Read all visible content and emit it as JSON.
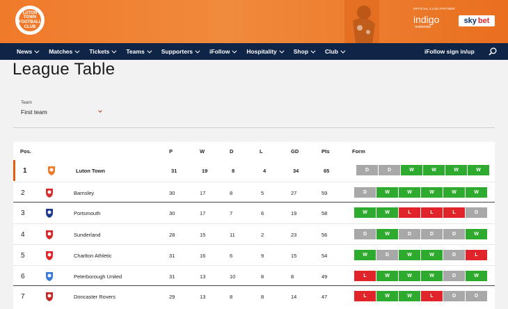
{
  "brand": {
    "crest_text": "LUTON TOWN FOOTBALL CLUB",
    "partner_label": "OFFICIAL CLUB PARTNER",
    "partner_indigo": "indigo",
    "partner_indigo_sub": "residential",
    "sponsor_sky": "sky",
    "sponsor_bet": "bet"
  },
  "nav": {
    "items": [
      {
        "label": "News"
      },
      {
        "label": "Matches"
      },
      {
        "label": "Tickets"
      },
      {
        "label": "Teams"
      },
      {
        "label": "Supporters"
      },
      {
        "label": "iFollow"
      },
      {
        "label": "Hospitality"
      },
      {
        "label": "Shop"
      },
      {
        "label": "Club"
      }
    ],
    "signin_label": "iFollow sign in/up",
    "search_icon": "search-icon"
  },
  "page": {
    "title": "League Table",
    "team_label": "Team",
    "team_value": "First team"
  },
  "table": {
    "headers": {
      "pos": "Pos.",
      "p": "P",
      "w": "W",
      "d": "D",
      "l": "L",
      "gd": "GD",
      "pts": "Pts",
      "form": "Form"
    },
    "rows": [
      {
        "pos": "1",
        "team": "Luton Town",
        "p": "31",
        "w": "19",
        "d": "8",
        "l": "4",
        "gd": "34",
        "pts": "65",
        "form": [
          "D",
          "D",
          "W",
          "W",
          "W",
          "W"
        ],
        "highlight": true,
        "bold": true,
        "badge_color": "#f07a2a"
      },
      {
        "pos": "2",
        "team": "Barnsley",
        "p": "30",
        "w": "17",
        "d": "8",
        "l": "5",
        "gd": "27",
        "pts": "59",
        "form": [
          "D",
          "W",
          "W",
          "W",
          "W",
          "W"
        ],
        "badge_color": "#d32f2f"
      },
      {
        "pos": "3",
        "team": "Portsmouth",
        "p": "30",
        "w": "17",
        "d": "7",
        "l": "6",
        "gd": "19",
        "pts": "58",
        "form": [
          "W",
          "W",
          "L",
          "L",
          "L",
          "D"
        ],
        "badge_color": "#1b3b8a"
      },
      {
        "pos": "4",
        "team": "Sunderland",
        "p": "28",
        "w": "15",
        "d": "11",
        "l": "2",
        "gd": "23",
        "pts": "56",
        "form": [
          "D",
          "W",
          "D",
          "D",
          "D",
          "W"
        ],
        "badge_color": "#d6262b"
      },
      {
        "pos": "5",
        "team": "Charlton Athletic",
        "p": "31",
        "w": "16",
        "d": "6",
        "l": "9",
        "gd": "15",
        "pts": "54",
        "form": [
          "W",
          "D",
          "W",
          "W",
          "D",
          "L"
        ],
        "badge_color": "#e1242a"
      },
      {
        "pos": "6",
        "team": "Peterborough United",
        "p": "31",
        "w": "13",
        "d": "10",
        "l": "8",
        "gd": "8",
        "pts": "49",
        "form": [
          "L",
          "W",
          "W",
          "W",
          "D",
          "W"
        ],
        "badge_color": "#3a7bd5"
      },
      {
        "pos": "7",
        "team": "Doncaster Rovers",
        "p": "29",
        "w": "13",
        "d": "8",
        "l": "8",
        "gd": "14",
        "pts": "47",
        "form": [
          "L",
          "W",
          "W",
          "L",
          "D",
          "D"
        ],
        "badge_color": "#c62828"
      }
    ]
  },
  "colors": {
    "win": "#2eaa2e",
    "draw": "#a8a8a8",
    "loss": "#e0242a",
    "nav": "#0f2548",
    "brand": "#f07a2a"
  }
}
